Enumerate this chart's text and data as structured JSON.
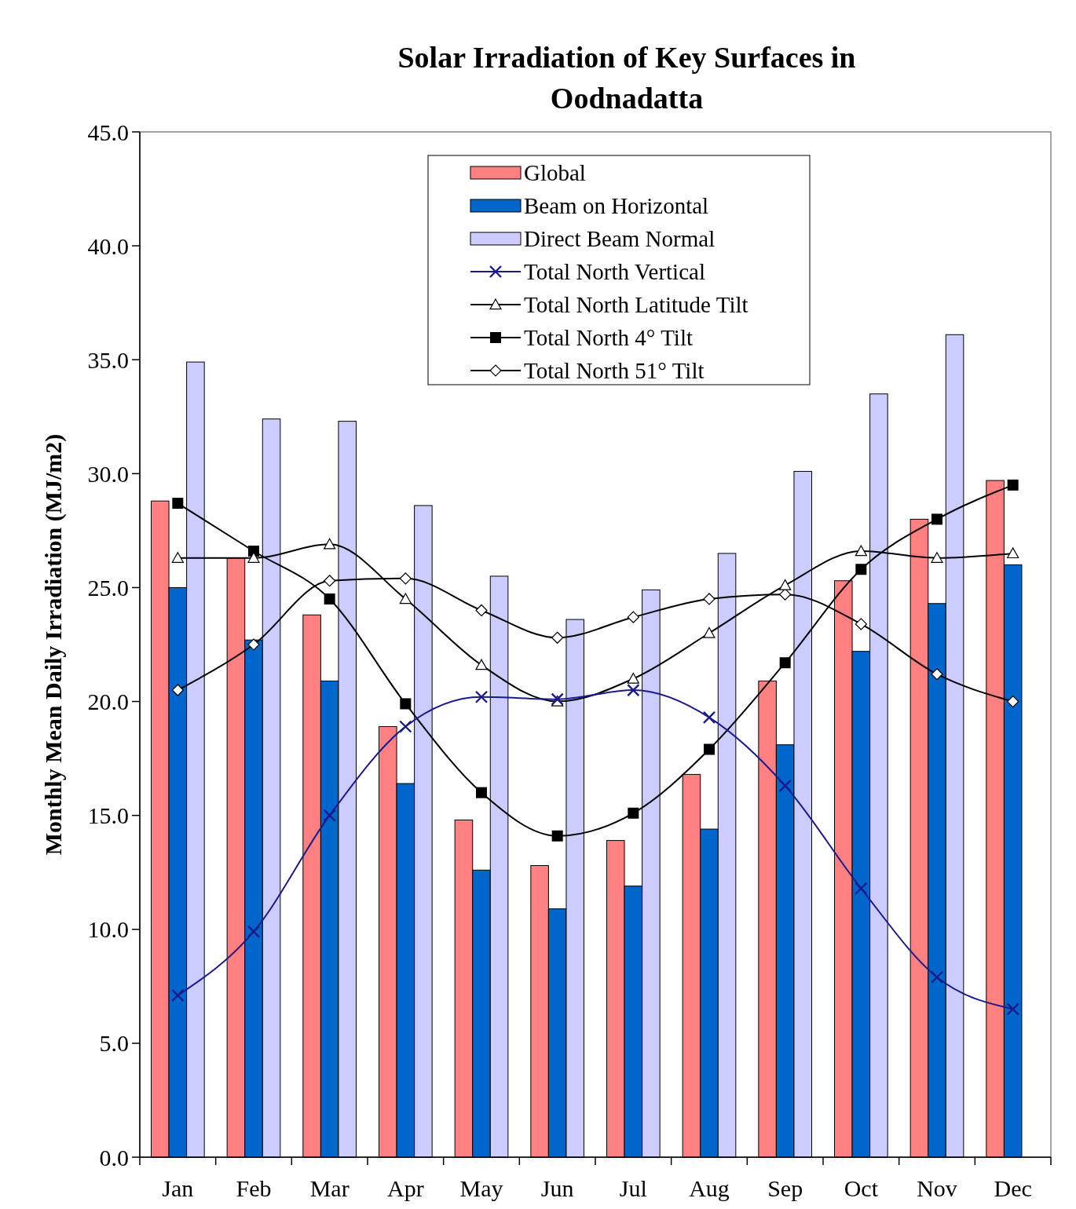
{
  "chart_data": {
    "type": "bar",
    "title": "Solar Irradiation of Key Surfaces in Oodnadatta",
    "ylabel": "Monthly Mean Daily Irradiation (MJ/m2)",
    "categories": [
      "Jan",
      "Feb",
      "Mar",
      "Apr",
      "May",
      "Jun",
      "Jul",
      "Aug",
      "Sep",
      "Oct",
      "Nov",
      "Dec"
    ],
    "ylim": [
      0,
      45
    ],
    "yticks": [
      {
        "value": 0,
        "label": "0.0"
      },
      {
        "value": 5,
        "label": "5.0"
      },
      {
        "value": 10,
        "label": "10.0"
      },
      {
        "value": 15,
        "label": "15.0"
      },
      {
        "value": 20,
        "label": "20.0"
      },
      {
        "value": 25,
        "label": "25.0"
      },
      {
        "value": 30,
        "label": "30.0"
      },
      {
        "value": 35,
        "label": "35.0"
      },
      {
        "value": 40,
        "label": "40.0"
      },
      {
        "value": 45,
        "label": "45.0"
      }
    ],
    "grid": false,
    "legend": "top",
    "series": [
      {
        "name": "Global",
        "type": "bar",
        "color": "#ff8080",
        "values": [
          28.8,
          26.3,
          23.8,
          18.9,
          14.8,
          12.8,
          13.9,
          16.8,
          20.9,
          25.3,
          28.0,
          29.7
        ]
      },
      {
        "name": "Beam on Horizontal",
        "type": "bar",
        "color": "#0066cc",
        "values": [
          25.0,
          22.7,
          20.9,
          16.4,
          12.6,
          10.9,
          11.9,
          14.4,
          18.1,
          22.2,
          24.3,
          26.0
        ]
      },
      {
        "name": "Direct Beam Normal",
        "type": "bar",
        "color": "#ccccff",
        "values": [
          34.9,
          32.4,
          32.3,
          28.6,
          25.5,
          23.6,
          24.9,
          26.5,
          30.1,
          33.5,
          36.1,
          null
        ]
      },
      {
        "name": "Total North Vertical",
        "type": "line",
        "color": "#1a1a8c",
        "marker": "cross",
        "values": [
          7.1,
          9.9,
          15.0,
          18.9,
          20.2,
          20.1,
          20.5,
          19.3,
          16.3,
          11.8,
          7.9,
          6.5
        ]
      },
      {
        "name": "Total North Latitude Tilt",
        "type": "line",
        "color": "#000000",
        "marker": "triangle",
        "values": [
          26.3,
          26.3,
          26.9,
          24.5,
          21.6,
          20.0,
          21.0,
          23.0,
          25.1,
          26.6,
          26.3,
          26.5
        ]
      },
      {
        "name": "Total North 4° Tilt",
        "type": "line",
        "color": "#000000",
        "marker": "square",
        "values": [
          28.7,
          26.6,
          24.5,
          19.9,
          16.0,
          14.1,
          15.1,
          17.9,
          21.7,
          25.8,
          28.0,
          29.5
        ]
      },
      {
        "name": "Total North 51° Tilt",
        "type": "line",
        "color": "#000000",
        "marker": "diamond",
        "values": [
          20.5,
          22.5,
          25.3,
          25.4,
          24.0,
          22.8,
          23.7,
          24.5,
          24.7,
          23.4,
          21.2,
          20.0
        ]
      }
    ]
  }
}
